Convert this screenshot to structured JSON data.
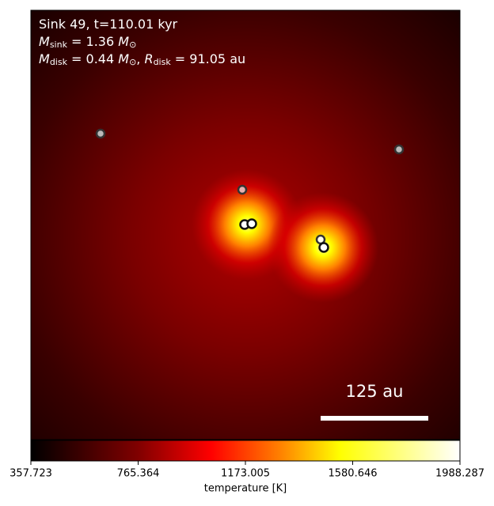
{
  "chart_data": {
    "type": "heatmap",
    "annotation_lines": [
      [
        {
          "text": "Sink 49, t=110.01 kyr"
        }
      ],
      [
        {
          "text": "M"
        },
        {
          "sub": "sink"
        },
        {
          "text": " = 1.36 "
        },
        {
          "text": "M",
          "italic": true
        },
        {
          "sub": "⊙"
        }
      ],
      [
        {
          "text": "M"
        },
        {
          "sub": "disk"
        },
        {
          "text": " = 0.44 "
        },
        {
          "text": "M",
          "italic": true
        },
        {
          "sub": "⊙"
        },
        {
          "text": ", "
        },
        {
          "text": "R",
          "italic": true
        },
        {
          "sub": "disk"
        },
        {
          "text": " = 91.05 au"
        }
      ]
    ],
    "scale_bar_label": "125 au",
    "colorbar": {
      "label": "temperature [K]",
      "clim": [
        357.723,
        1988.287
      ],
      "ticks": [
        357.723,
        765.364,
        1173.005,
        1580.646,
        1988.287
      ],
      "colormap": "hot"
    }
  }
}
